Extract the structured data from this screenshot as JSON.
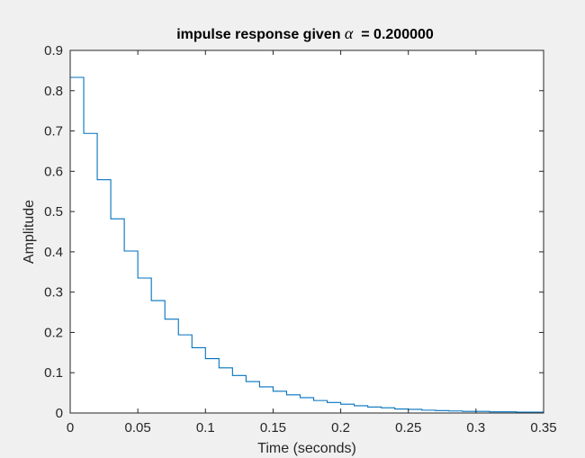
{
  "chart_data": {
    "type": "line",
    "style": "stairs",
    "title_parts": [
      {
        "text": "impulse response given ",
        "italic": false
      },
      {
        "text": "α",
        "italic": true
      },
      {
        "text": "  = 0.200000",
        "italic": false
      }
    ],
    "xlabel": "Time (seconds)",
    "ylabel": "Amplitude",
    "xlim": [
      0,
      0.35
    ],
    "ylim": [
      0,
      0.9
    ],
    "xticks": [
      {
        "v": 0,
        "label": "0"
      },
      {
        "v": 0.05,
        "label": "0.05"
      },
      {
        "v": 0.1,
        "label": "0.1"
      },
      {
        "v": 0.15,
        "label": "0.15"
      },
      {
        "v": 0.2,
        "label": "0.2"
      },
      {
        "v": 0.25,
        "label": "0.25"
      },
      {
        "v": 0.3,
        "label": "0.3"
      },
      {
        "v": 0.35,
        "label": "0.35"
      }
    ],
    "yticks": [
      {
        "v": 0,
        "label": "0"
      },
      {
        "v": 0.1,
        "label": "0.1"
      },
      {
        "v": 0.2,
        "label": "0.2"
      },
      {
        "v": 0.3,
        "label": "0.3"
      },
      {
        "v": 0.4,
        "label": "0.4"
      },
      {
        "v": 0.5,
        "label": "0.5"
      },
      {
        "v": 0.6,
        "label": "0.6"
      },
      {
        "v": 0.7,
        "label": "0.7"
      },
      {
        "v": 0.8,
        "label": "0.8"
      },
      {
        "v": 0.9,
        "label": "0.9"
      }
    ],
    "grid": false,
    "series": [
      {
        "color": "#0072bd",
        "x": [
          0,
          0.01,
          0.02,
          0.03,
          0.04,
          0.05,
          0.06,
          0.07,
          0.08,
          0.09,
          0.1,
          0.11,
          0.12,
          0.13,
          0.14,
          0.15,
          0.16,
          0.17,
          0.18,
          0.19,
          0.2,
          0.21,
          0.22,
          0.23,
          0.24,
          0.25,
          0.26,
          0.27,
          0.28,
          0.29,
          0.3,
          0.31,
          0.32,
          0.33,
          0.34,
          0.35
        ],
        "y": [
          0.833,
          0.694,
          0.579,
          0.482,
          0.402,
          0.335,
          0.279,
          0.233,
          0.194,
          0.162,
          0.135,
          0.112,
          0.093,
          0.078,
          0.065,
          0.054,
          0.045,
          0.038,
          0.031,
          0.026,
          0.022,
          0.018,
          0.015,
          0.013,
          0.01,
          0.009,
          0.007,
          0.006,
          0.005,
          0.004,
          0.004,
          0.003,
          0.003,
          0.002,
          0.002,
          0.002
        ]
      }
    ]
  }
}
